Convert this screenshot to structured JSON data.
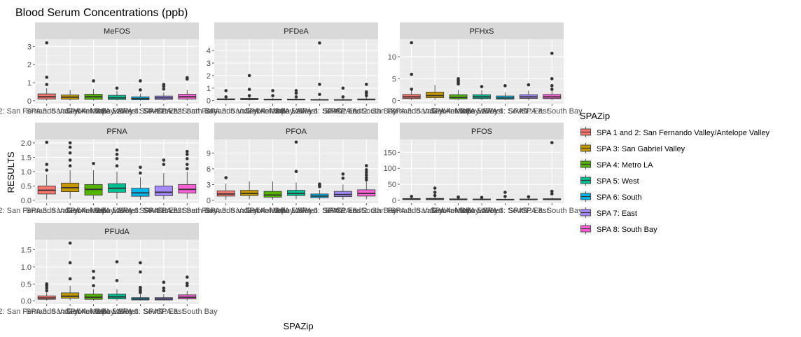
{
  "chart_data": {
    "type": "boxplot",
    "title": "Blood Serum Concentrations (ppb)",
    "xlabel": "SPAZip",
    "ylabel": "RESULTS",
    "legend": {
      "title": "SPAZip",
      "position": "right",
      "items": [
        {
          "label": "SPA 1 and 2: San Fernando Valley/Antelope Valley",
          "color": "#F8766D"
        },
        {
          "label": "SPA 3: San Gabriel Valley",
          "color": "#C49A00"
        },
        {
          "label": "SPA 4: Metro LA",
          "color": "#53B400"
        },
        {
          "label": "SPA 5: West",
          "color": "#00C094"
        },
        {
          "label": "SPA 6: South",
          "color": "#00B6EB"
        },
        {
          "label": "SPA 7: East",
          "color": "#A58AFF"
        },
        {
          "label": "SPA 8: South Bay",
          "color": "#FB61D7"
        }
      ]
    },
    "categories": [
      "SPA 1 and 2: San Fernando Valley/Antelope Valley",
      "SPA 3: San Gabriel Valley",
      "SPA 4: Metro LA",
      "SPA 5: West",
      "SPA 6: South",
      "SPA 7: East",
      "SPA 8: South Bay"
    ],
    "grid": true,
    "panels": [
      {
        "name": "MeFOS",
        "ylim": [
          -0.16,
          3.4
        ],
        "yticks": [
          0,
          1,
          2,
          3
        ],
        "ytick_labels": [
          "0",
          "1",
          "2",
          "3"
        ],
        "boxes": [
          {
            "lower": 0.02,
            "q1": 0.1,
            "median": 0.22,
            "q3": 0.38,
            "upper": 0.7,
            "outliers": [
              0.9,
              1.3,
              3.2
            ]
          },
          {
            "lower": 0.02,
            "q1": 0.09,
            "median": 0.2,
            "q3": 0.32,
            "upper": 0.6,
            "outliers": []
          },
          {
            "lower": 0.02,
            "q1": 0.08,
            "median": 0.22,
            "q3": 0.36,
            "upper": 0.65,
            "outliers": [
              1.1
            ]
          },
          {
            "lower": 0.02,
            "q1": 0.07,
            "median": 0.16,
            "q3": 0.3,
            "upper": 0.55,
            "outliers": [
              0.7
            ]
          },
          {
            "lower": 0.01,
            "q1": 0.05,
            "median": 0.12,
            "q3": 0.22,
            "upper": 0.4,
            "outliers": [
              0.6,
              1.1
            ]
          },
          {
            "lower": 0.02,
            "q1": 0.07,
            "median": 0.16,
            "q3": 0.26,
            "upper": 0.45,
            "outliers": [
              0.65,
              0.8,
              0.9
            ]
          },
          {
            "lower": 0.02,
            "q1": 0.1,
            "median": 0.22,
            "q3": 0.36,
            "upper": 0.6,
            "outliers": [
              1.2,
              1.28
            ]
          }
        ]
      },
      {
        "name": "PFDeA",
        "ylim": [
          -0.24,
          4.9
        ],
        "yticks": [
          0,
          1,
          2,
          3,
          4
        ],
        "ytick_labels": [
          "0",
          "1",
          "2",
          "3",
          "4"
        ],
        "boxes": [
          {
            "lower": 0.02,
            "q1": 0.06,
            "median": 0.1,
            "q3": 0.15,
            "upper": 0.25,
            "outliers": [
              0.3,
              0.8
            ]
          },
          {
            "lower": 0.02,
            "q1": 0.07,
            "median": 0.12,
            "q3": 0.18,
            "upper": 0.3,
            "outliers": [
              0.4,
              0.9,
              2.0
            ]
          },
          {
            "lower": 0.02,
            "q1": 0.05,
            "median": 0.09,
            "q3": 0.13,
            "upper": 0.2,
            "outliers": [
              0.4,
              0.8
            ]
          },
          {
            "lower": 0.02,
            "q1": 0.05,
            "median": 0.09,
            "q3": 0.13,
            "upper": 0.2,
            "outliers": [
              0.3,
              0.6,
              0.8
            ]
          },
          {
            "lower": 0.01,
            "q1": 0.04,
            "median": 0.07,
            "q3": 0.1,
            "upper": 0.18,
            "outliers": [
              0.5,
              1.3,
              4.6
            ]
          },
          {
            "lower": 0.01,
            "q1": 0.03,
            "median": 0.06,
            "q3": 0.09,
            "upper": 0.15,
            "outliers": [
              0.3,
              1.0
            ]
          },
          {
            "lower": 0.02,
            "q1": 0.05,
            "median": 0.09,
            "q3": 0.14,
            "upper": 0.25,
            "outliers": [
              0.4,
              0.6,
              0.7,
              1.3
            ]
          }
        ]
      },
      {
        "name": "PFHxS",
        "ylim": [
          -0.7,
          14.0
        ],
        "yticks": [
          0,
          5,
          10
        ],
        "ytick_labels": [
          "0",
          "5",
          "10"
        ],
        "boxes": [
          {
            "lower": 0.1,
            "q1": 0.45,
            "median": 0.85,
            "q3": 1.4,
            "upper": 2.4,
            "outliers": [
              2.6,
              6.0,
              13.2
            ]
          },
          {
            "lower": 0.1,
            "q1": 0.65,
            "median": 1.15,
            "q3": 1.95,
            "upper": 3.6,
            "outliers": []
          },
          {
            "lower": 0.1,
            "q1": 0.4,
            "median": 0.75,
            "q3": 1.35,
            "upper": 2.5,
            "outliers": [
              3.8,
              4.2,
              4.6,
              5.0
            ]
          },
          {
            "lower": 0.1,
            "q1": 0.45,
            "median": 0.85,
            "q3": 1.35,
            "upper": 2.4,
            "outliers": [
              3.2
            ]
          },
          {
            "lower": 0.1,
            "q1": 0.35,
            "median": 0.6,
            "q3": 1.05,
            "upper": 1.9,
            "outliers": [
              3.4
            ]
          },
          {
            "lower": 0.1,
            "q1": 0.5,
            "median": 0.85,
            "q3": 1.35,
            "upper": 2.3,
            "outliers": [
              3.6
            ]
          },
          {
            "lower": 0.1,
            "q1": 0.45,
            "median": 0.85,
            "q3": 1.4,
            "upper": 2.4,
            "outliers": [
              2.6,
              3.4,
              5.0,
              10.8
            ]
          }
        ]
      },
      {
        "name": "PFNA",
        "ylim": [
          -0.1,
          2.12
        ],
        "yticks": [
          0,
          0.5,
          1,
          1.5,
          2
        ],
        "ytick_labels": [
          "0.0",
          "0.5",
          "1.0",
          "1.5",
          "2.0"
        ],
        "boxes": [
          {
            "lower": 0.03,
            "q1": 0.22,
            "median": 0.35,
            "q3": 0.5,
            "upper": 0.9,
            "outliers": [
              1.05,
              1.25,
              2.02
            ]
          },
          {
            "lower": 0.05,
            "q1": 0.3,
            "median": 0.44,
            "q3": 0.6,
            "upper": 1.05,
            "outliers": [
              1.2,
              1.4,
              1.65,
              1.85,
              2.0
            ]
          },
          {
            "lower": 0.03,
            "q1": 0.18,
            "median": 0.38,
            "q3": 0.55,
            "upper": 1.05,
            "outliers": [
              1.28
            ]
          },
          {
            "lower": 0.05,
            "q1": 0.28,
            "median": 0.42,
            "q3": 0.58,
            "upper": 1.0,
            "outliers": [
              1.2,
              1.45,
              1.6,
              1.75
            ]
          },
          {
            "lower": 0.02,
            "q1": 0.14,
            "median": 0.26,
            "q3": 0.42,
            "upper": 0.8,
            "outliers": [
              0.95,
              1.15
            ]
          },
          {
            "lower": 0.03,
            "q1": 0.16,
            "median": 0.28,
            "q3": 0.5,
            "upper": 0.95,
            "outliers": [
              1.25,
              1.4
            ]
          },
          {
            "lower": 0.05,
            "q1": 0.25,
            "median": 0.38,
            "q3": 0.55,
            "upper": 1.0,
            "outliers": [
              1.1,
              1.25,
              1.45,
              1.6,
              1.7
            ]
          }
        ]
      },
      {
        "name": "PFOA",
        "ylim": [
          -0.55,
          11.6
        ],
        "yticks": [
          0,
          3,
          6,
          9
        ],
        "ytick_labels": [
          "0",
          "3",
          "6",
          "9"
        ],
        "boxes": [
          {
            "lower": 0.1,
            "q1": 0.8,
            "median": 1.2,
            "q3": 1.8,
            "upper": 3.2,
            "outliers": [
              4.3
            ]
          },
          {
            "lower": 0.2,
            "q1": 0.9,
            "median": 1.3,
            "q3": 1.9,
            "upper": 3.6,
            "outliers": []
          },
          {
            "lower": 0.1,
            "q1": 0.6,
            "median": 1.0,
            "q3": 1.7,
            "upper": 3.6,
            "outliers": []
          },
          {
            "lower": 0.2,
            "q1": 0.9,
            "median": 1.3,
            "q3": 1.9,
            "upper": 3.4,
            "outliers": [
              5.5,
              11.1
            ]
          },
          {
            "lower": 0.1,
            "q1": 0.5,
            "median": 0.8,
            "q3": 1.2,
            "upper": 2.0,
            "outliers": [
              2.6,
              2.9,
              3.1
            ]
          },
          {
            "lower": 0.1,
            "q1": 0.7,
            "median": 1.1,
            "q3": 1.7,
            "upper": 3.0,
            "outliers": [
              4.2,
              5.0
            ]
          },
          {
            "lower": 0.2,
            "q1": 0.8,
            "median": 1.3,
            "q3": 2.0,
            "upper": 3.6,
            "outliers": [
              3.9,
              4.3,
              4.8,
              5.3,
              5.8,
              6.6
            ]
          }
        ]
      },
      {
        "name": "PFOS",
        "ylim": [
          -9,
          190
        ],
        "yticks": [
          0,
          50,
          100,
          150
        ],
        "ytick_labels": [
          "0",
          "50",
          "100",
          "150"
        ],
        "boxes": [
          {
            "lower": 0.5,
            "q1": 2.0,
            "median": 3.5,
            "q3": 5.5,
            "upper": 10,
            "outliers": [
              12
            ]
          },
          {
            "lower": 0.5,
            "q1": 2.0,
            "median": 3.5,
            "q3": 6.0,
            "upper": 11,
            "outliers": [
              15,
              25,
              38
            ]
          },
          {
            "lower": 0.5,
            "q1": 1.5,
            "median": 2.5,
            "q3": 4.5,
            "upper": 8,
            "outliers": [
              10
            ]
          },
          {
            "lower": 0.5,
            "q1": 1.5,
            "median": 2.5,
            "q3": 4.0,
            "upper": 7,
            "outliers": [
              9
            ]
          },
          {
            "lower": 0.3,
            "q1": 1.0,
            "median": 2.0,
            "q3": 3.5,
            "upper": 6,
            "outliers": [
              12,
              25
            ]
          },
          {
            "lower": 0.5,
            "q1": 1.5,
            "median": 2.5,
            "q3": 4.0,
            "upper": 7,
            "outliers": [
              11
            ]
          },
          {
            "lower": 0.5,
            "q1": 1.5,
            "median": 3.0,
            "q3": 5.0,
            "upper": 9,
            "outliers": [
              20,
              28,
              180
            ]
          }
        ]
      },
      {
        "name": "PFUdA",
        "ylim": [
          -0.09,
          1.8
        ],
        "yticks": [
          0,
          0.5,
          1,
          1.5
        ],
        "ytick_labels": [
          "0.0",
          "0.5",
          "1.0",
          "1.5"
        ],
        "boxes": [
          {
            "lower": 0.01,
            "q1": 0.05,
            "median": 0.09,
            "q3": 0.15,
            "upper": 0.25,
            "outliers": [
              0.3,
              0.38,
              0.45,
              0.5
            ]
          },
          {
            "lower": 0.02,
            "q1": 0.08,
            "median": 0.14,
            "q3": 0.24,
            "upper": 0.45,
            "outliers": [
              0.65,
              1.12,
              1.7
            ]
          },
          {
            "lower": 0.01,
            "q1": 0.05,
            "median": 0.11,
            "q3": 0.2,
            "upper": 0.35,
            "outliers": [
              0.45,
              0.68,
              0.87
            ]
          },
          {
            "lower": 0.01,
            "q1": 0.06,
            "median": 0.12,
            "q3": 0.2,
            "upper": 0.35,
            "outliers": [
              0.6,
              1.15
            ]
          },
          {
            "lower": 0.01,
            "q1": 0.03,
            "median": 0.06,
            "q3": 0.1,
            "upper": 0.2,
            "outliers": [
              0.25,
              0.3,
              0.35,
              0.4,
              0.85,
              1.12
            ]
          },
          {
            "lower": 0.01,
            "q1": 0.03,
            "median": 0.06,
            "q3": 0.1,
            "upper": 0.2,
            "outliers": [
              0.3,
              0.38,
              0.55
            ]
          },
          {
            "lower": 0.01,
            "q1": 0.06,
            "median": 0.11,
            "q3": 0.18,
            "upper": 0.3,
            "outliers": [
              0.45,
              0.52,
              0.7
            ]
          }
        ]
      }
    ]
  }
}
